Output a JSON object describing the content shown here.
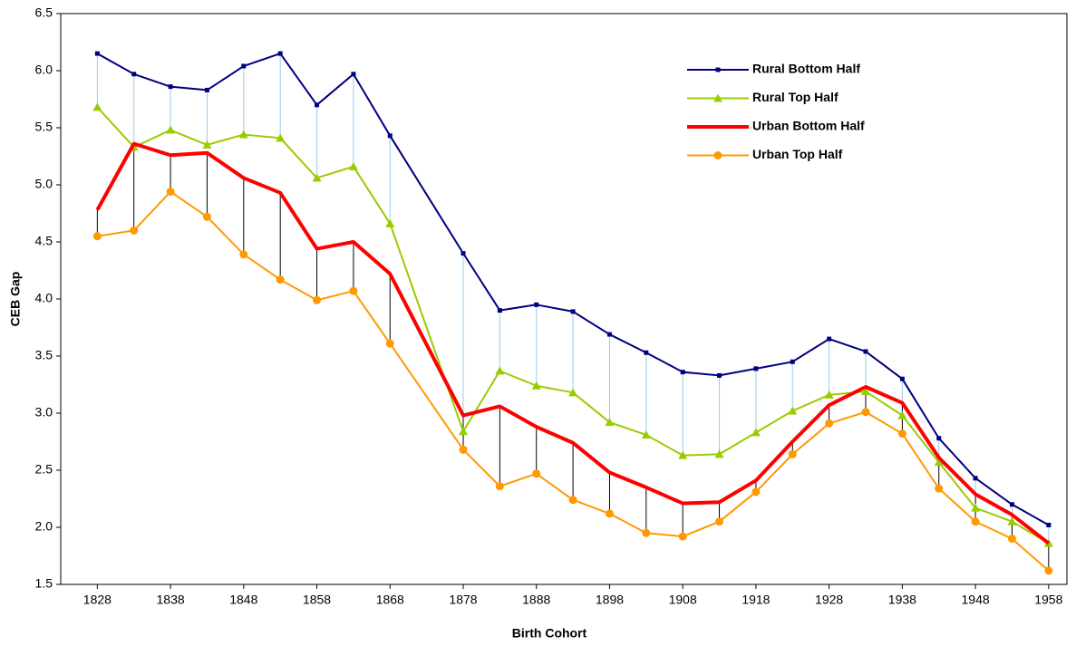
{
  "chart_data": {
    "type": "line",
    "x_label": "Birth Cohort",
    "y_label": "CEB Gap",
    "x": [
      1828,
      1833,
      1838,
      1843,
      1848,
      1853,
      1858,
      1863,
      1868,
      1878,
      1883,
      1888,
      1893,
      1898,
      1903,
      1908,
      1913,
      1918,
      1923,
      1928,
      1933,
      1938,
      1943,
      1948,
      1953,
      1958
    ],
    "series": [
      {
        "name": "Rural Bottom Half",
        "color": "#000080",
        "marker": "square",
        "line_width": 2,
        "values": [
          6.15,
          5.97,
          5.86,
          5.83,
          6.04,
          6.15,
          5.7,
          5.97,
          5.43,
          4.4,
          3.9,
          3.95,
          3.89,
          3.69,
          3.53,
          3.36,
          3.33,
          3.39,
          3.45,
          3.65,
          3.54,
          3.3,
          2.78,
          2.43,
          2.2,
          2.02
        ]
      },
      {
        "name": "Rural Top Half",
        "color": "#99cc00",
        "marker": "triangle",
        "line_width": 2,
        "values": [
          5.68,
          5.33,
          5.48,
          5.35,
          5.44,
          5.41,
          5.06,
          5.16,
          4.66,
          2.84,
          3.37,
          3.24,
          3.18,
          2.92,
          2.81,
          2.63,
          2.64,
          2.83,
          3.02,
          3.16,
          3.19,
          2.98,
          2.57,
          2.17,
          2.05,
          1.86
        ]
      },
      {
        "name": "Urban Bottom Half",
        "color": "#ff0000",
        "marker": "none",
        "line_width": 4,
        "values": [
          4.78,
          5.36,
          5.26,
          5.28,
          5.06,
          4.93,
          4.44,
          4.5,
          4.22,
          2.98,
          3.06,
          2.88,
          2.74,
          2.48,
          2.35,
          2.21,
          2.22,
          2.41,
          2.75,
          3.07,
          3.23,
          3.09,
          2.61,
          2.29,
          2.11,
          1.86
        ]
      },
      {
        "name": "Urban Top Half",
        "color": "#ff9900",
        "marker": "circle",
        "line_width": 2,
        "values": [
          4.55,
          4.6,
          4.94,
          4.72,
          4.39,
          4.17,
          3.99,
          4.07,
          3.61,
          2.68,
          2.36,
          2.47,
          2.24,
          2.12,
          1.95,
          1.92,
          2.05,
          2.31,
          2.64,
          2.91,
          3.01,
          2.82,
          2.34,
          2.05,
          1.9,
          1.62
        ]
      }
    ],
    "drop_lines": [
      {
        "from": 0,
        "to": 1,
        "color": "#99ccee"
      },
      {
        "from": 2,
        "to": 3,
        "color": "#000000"
      }
    ],
    "xlim": [
      1823,
      1960.5
    ],
    "xticks": [
      1828,
      1838,
      1848,
      1858,
      1868,
      1878,
      1888,
      1898,
      1908,
      1918,
      1928,
      1938,
      1948,
      1958
    ],
    "ylim": [
      1.5,
      6.5
    ],
    "yticks": [
      1.5,
      {
        "value": 2,
        "label": "2.0"
      },
      2.5,
      {
        "value": 3,
        "label": "3.0"
      },
      3.5,
      {
        "value": 4,
        "label": "4.0"
      },
      4.5,
      {
        "value": 5,
        "label": "5.0"
      },
      5.5,
      {
        "value": 6,
        "label": "6.0"
      },
      6.5
    ],
    "legend": "upper-right",
    "grid": false
  }
}
